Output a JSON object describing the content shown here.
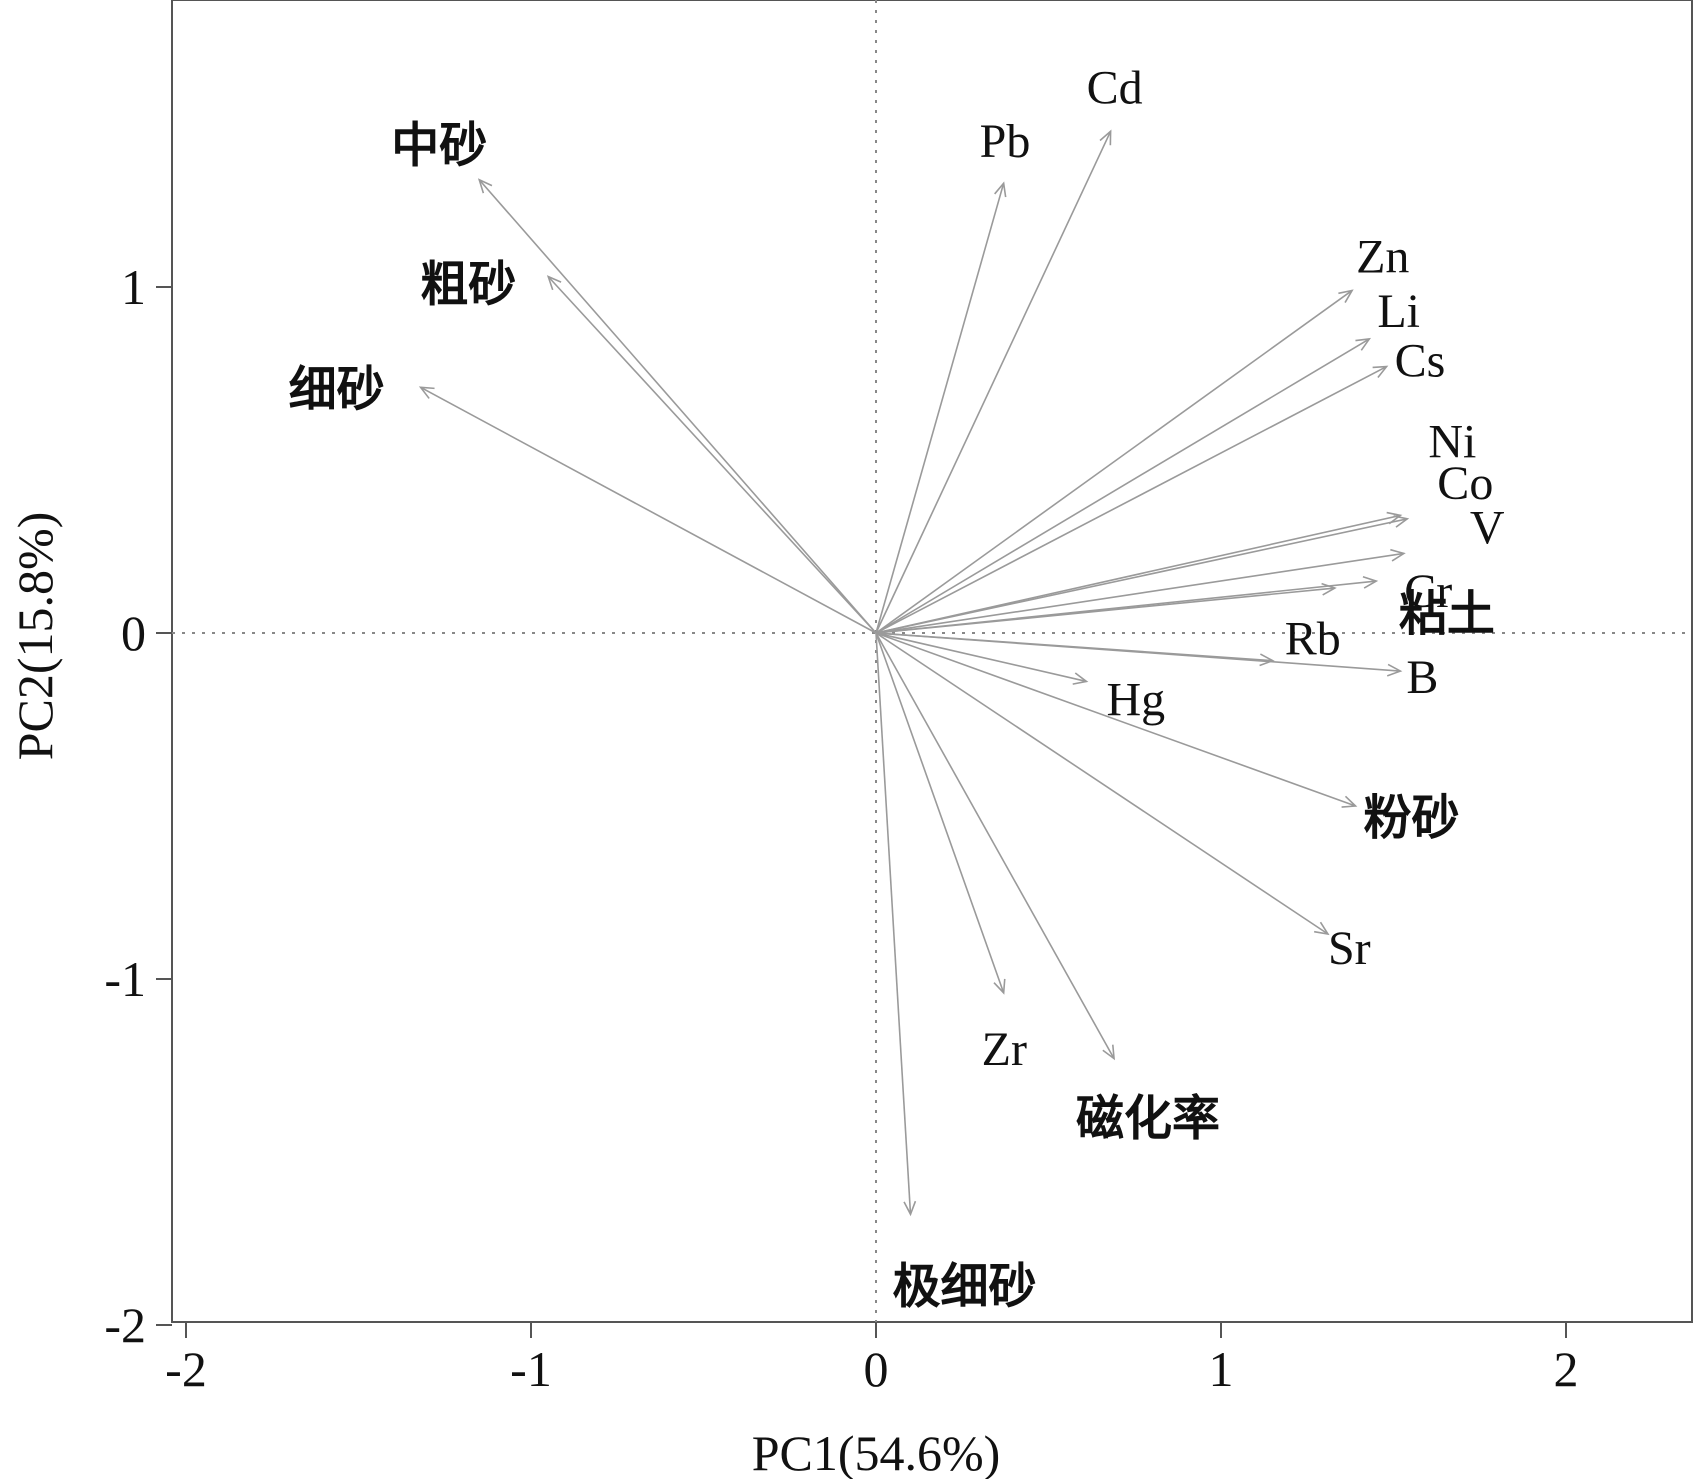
{
  "chart_data": {
    "type": "scatter",
    "subtype": "pca-biplot",
    "xlabel": "PC1(54.6%)",
    "ylabel": "PC2(15.8%)",
    "xlim": [
      -2.05,
      2.35
    ],
    "ylim": [
      -2.05,
      1.82
    ],
    "xticks": [
      -2,
      -1,
      0,
      1,
      2
    ],
    "yticks": [
      -2,
      -1,
      0,
      1
    ],
    "xtick_labels": [
      "-2",
      "-1",
      "0",
      "1",
      "2"
    ],
    "ytick_labels": [
      "-2",
      "-1",
      "0",
      "1"
    ],
    "zero_lines": true,
    "loadings": [
      {
        "name": "中砂",
        "x": -1.15,
        "y": 1.31
      },
      {
        "name": "粗砂",
        "x": -0.95,
        "y": 1.03
      },
      {
        "name": "细砂",
        "x": -1.32,
        "y": 0.71
      },
      {
        "name": "Pb",
        "x": 0.37,
        "y": 1.3
      },
      {
        "name": "Cd",
        "x": 0.68,
        "y": 1.45
      },
      {
        "name": "Zn",
        "x": 1.38,
        "y": 0.99
      },
      {
        "name": "Li",
        "x": 1.43,
        "y": 0.85
      },
      {
        "name": "Cs",
        "x": 1.48,
        "y": 0.77
      },
      {
        "name": "Ni",
        "x": 1.52,
        "y": 0.34
      },
      {
        "name": "Co",
        "x": 1.54,
        "y": 0.33
      },
      {
        "name": "V",
        "x": 1.53,
        "y": 0.23
      },
      {
        "name": "Cr",
        "x": 1.45,
        "y": 0.15
      },
      {
        "name": "粘土",
        "x": 1.33,
        "y": 0.13
      },
      {
        "name": "Rb",
        "x": 1.15,
        "y": -0.08
      },
      {
        "name": "B",
        "x": 1.52,
        "y": -0.11
      },
      {
        "name": "Hg",
        "x": 0.61,
        "y": -0.14
      },
      {
        "name": "粉砂",
        "x": 1.39,
        "y": -0.5
      },
      {
        "name": "Sr",
        "x": 1.31,
        "y": -0.87
      },
      {
        "name": "Zr",
        "x": 0.37,
        "y": -1.04
      },
      {
        "name": "磁化率",
        "x": 0.69,
        "y": -1.23
      },
      {
        "name": "极细砂",
        "x": 0.1,
        "y": -1.68
      }
    ]
  }
}
